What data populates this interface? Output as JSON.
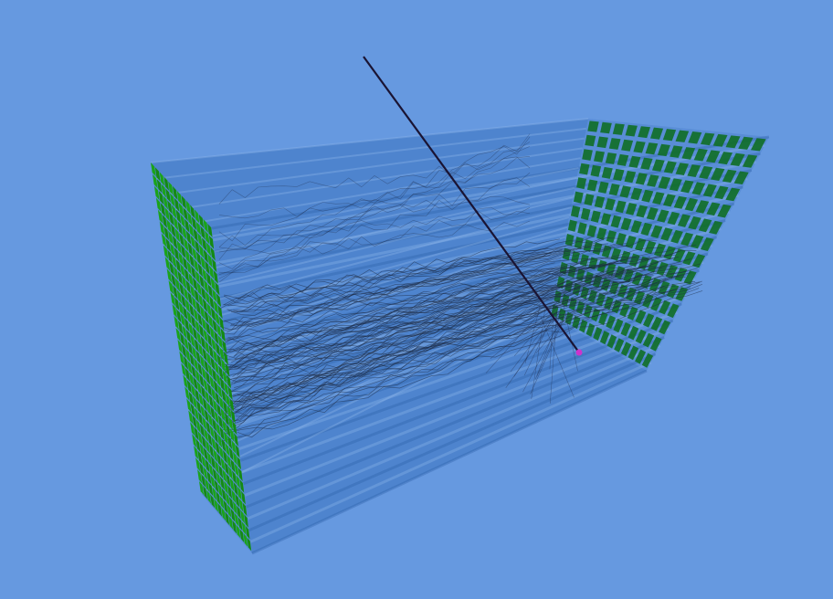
{
  "scene": {
    "background_color": "#6699e0",
    "detector": {
      "type": "segmented-calorimeter-block",
      "grid_rows": 14,
      "grid_cols": 14,
      "cell_color": "#1aa31a",
      "cell_color_far": "#0f6e26",
      "body_color": "#3a74c0"
    },
    "primary_track": {
      "color": "#1a1433",
      "vertex_marker_color": "#cc33cc"
    },
    "secondary_tracks": {
      "count": 90,
      "color": "#1e2b46"
    }
  }
}
